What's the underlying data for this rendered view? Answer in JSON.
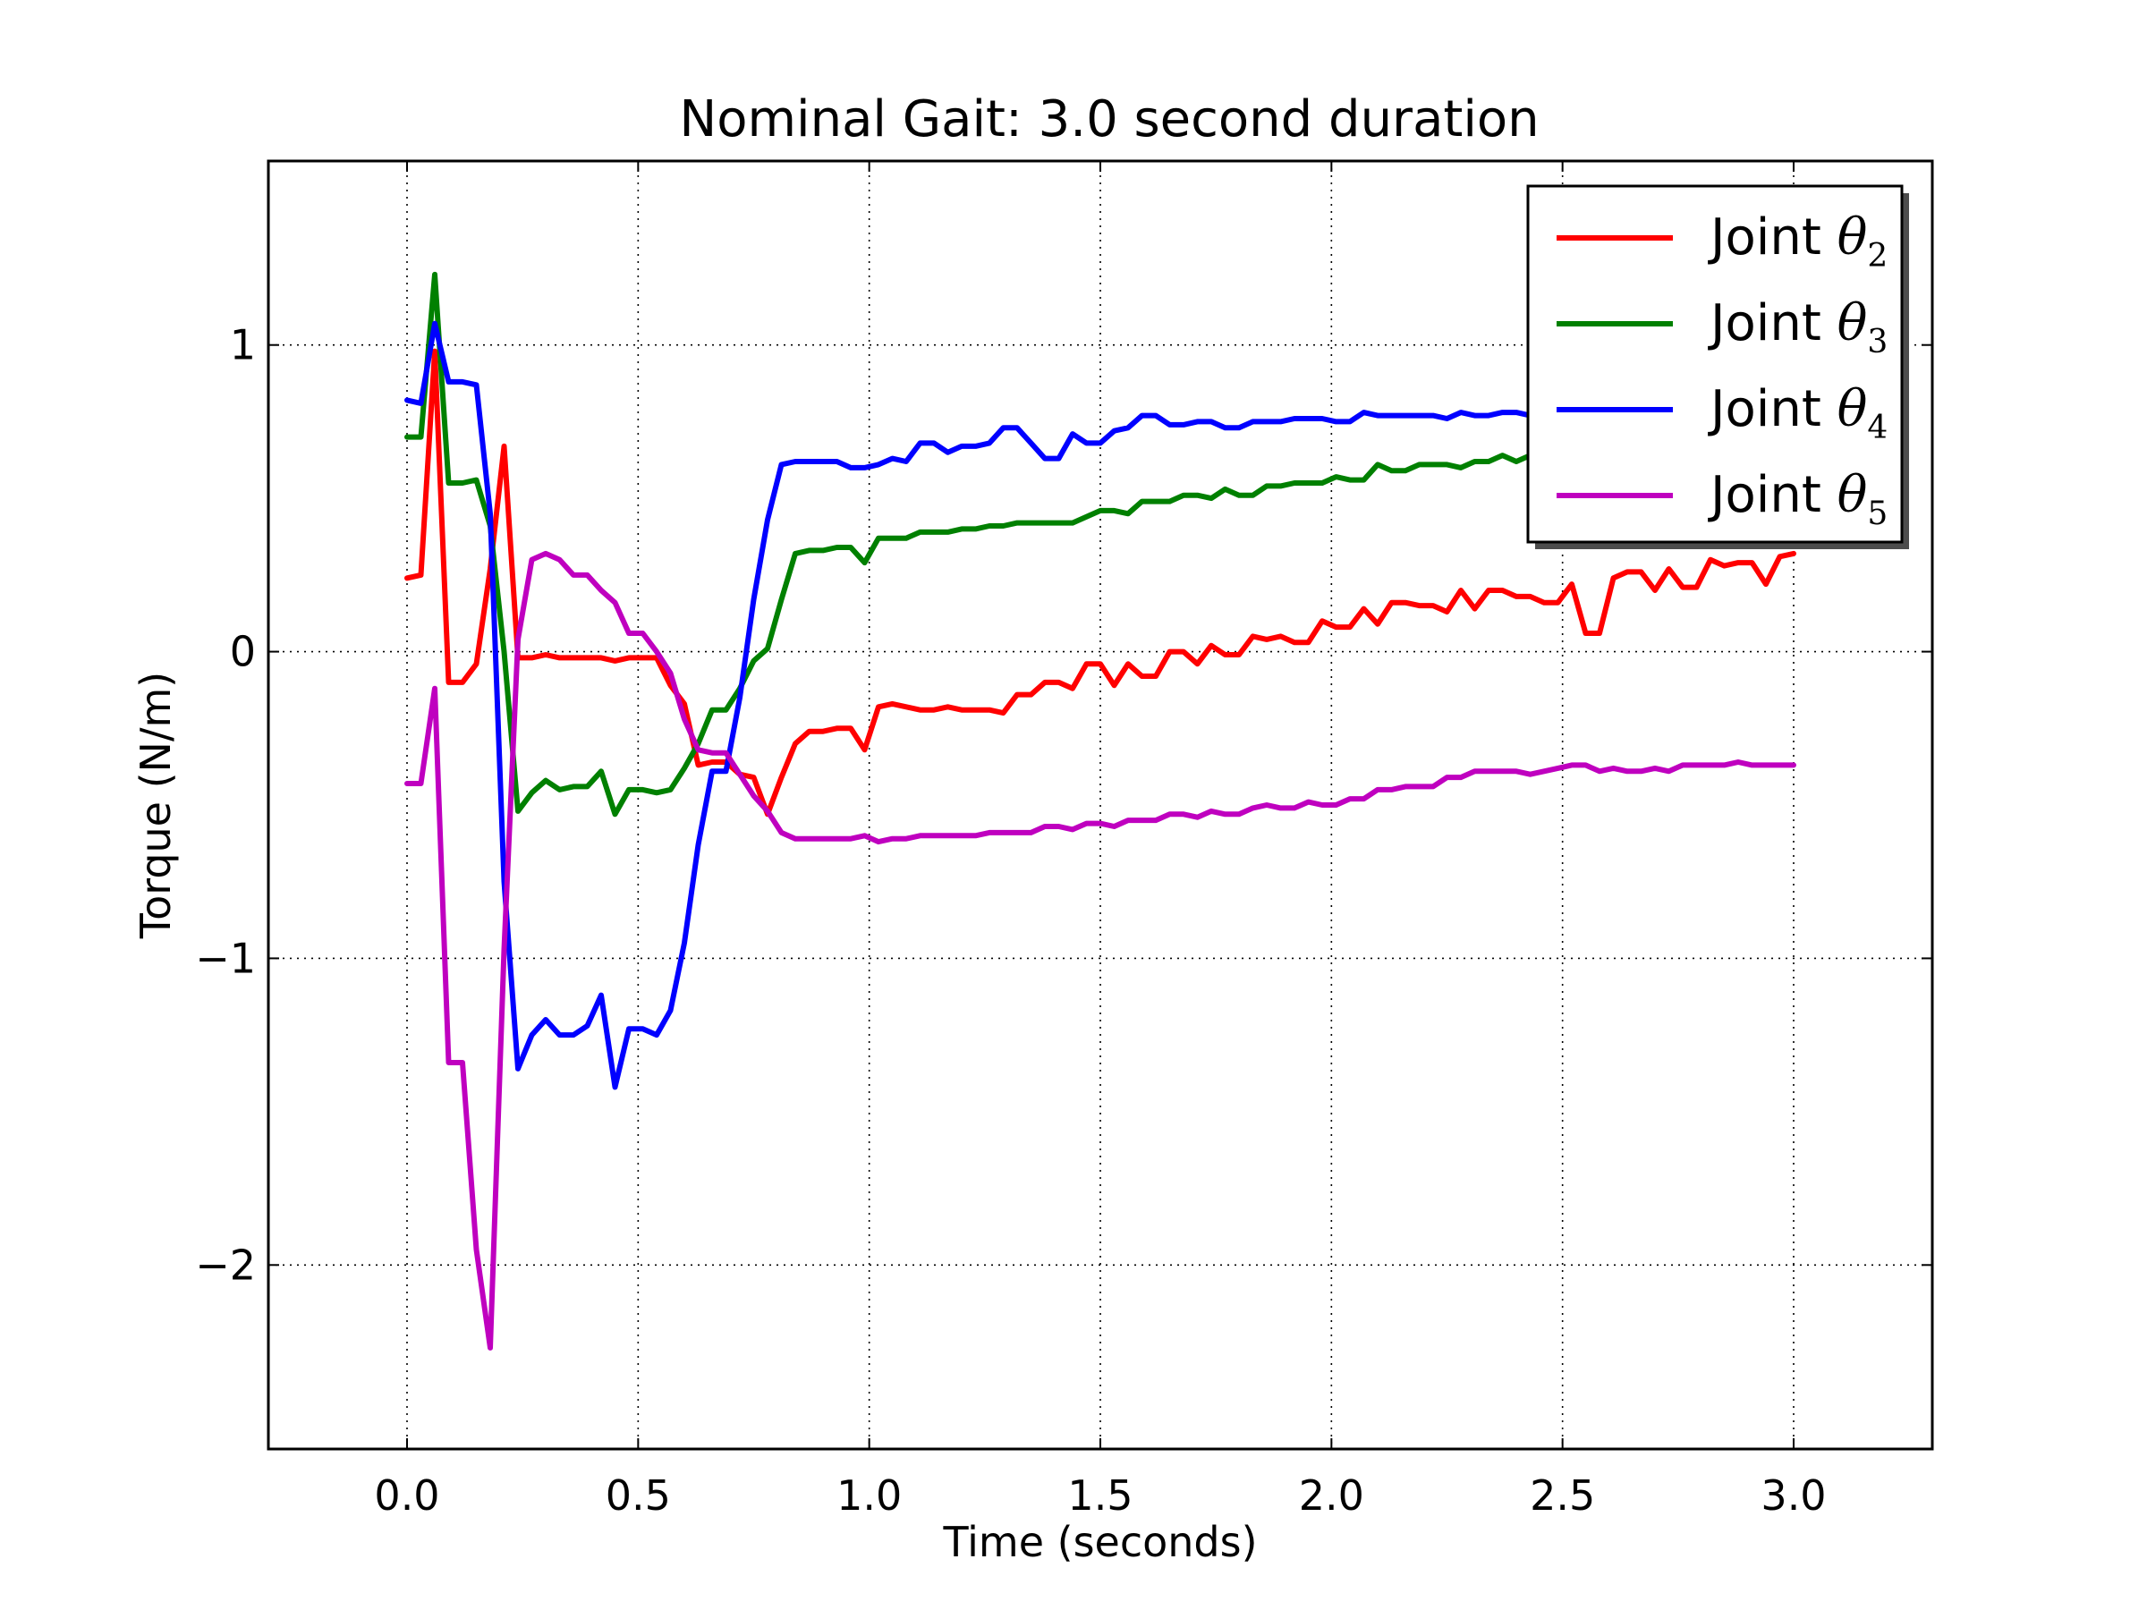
{
  "chart_data": {
    "type": "line",
    "title": "Nominal Gait: 3.0 second duration",
    "xlabel": "Time (seconds)",
    "ylabel": "Torque (N/m)",
    "xlim": [
      -0.3,
      3.3
    ],
    "ylim": [
      -2.6,
      1.6
    ],
    "xticks": [
      0.0,
      0.5,
      1.0,
      1.5,
      2.0,
      2.5,
      3.0
    ],
    "xtick_labels": [
      "0.0",
      "0.5",
      "1.0",
      "1.5",
      "2.0",
      "2.5",
      "3.0"
    ],
    "yticks": [
      -2,
      -1,
      0,
      1
    ],
    "ytick_labels": [
      "−2",
      "−1",
      "0",
      "1"
    ],
    "grid": true,
    "legend_position": "top-right",
    "series": [
      {
        "name": "Joint θ2",
        "label_main": "Joint ",
        "label_symbol": "θ",
        "label_sub": "2",
        "color": "#ff0000",
        "x": [
          0.0,
          0.03,
          0.06,
          0.09,
          0.12,
          0.15,
          0.18,
          0.21,
          0.24,
          0.27,
          0.3,
          0.33,
          0.36,
          0.39,
          0.42,
          0.45,
          0.48,
          0.51,
          0.54,
          0.57,
          0.6,
          0.63,
          0.66,
          0.69,
          0.72,
          0.75,
          0.78,
          0.81,
          0.84,
          0.87,
          0.9,
          0.93,
          0.96,
          0.99,
          1.02,
          1.05,
          1.08,
          1.11,
          1.14,
          1.17,
          1.2,
          1.23,
          1.26,
          1.29,
          1.32,
          1.35,
          1.38,
          1.41,
          1.44,
          1.47,
          1.5,
          1.53,
          1.56,
          1.59,
          1.62,
          1.65,
          1.68,
          1.71,
          1.74,
          1.77,
          1.8,
          1.83,
          1.86,
          1.89,
          1.92,
          1.95,
          1.98,
          2.01,
          2.04,
          2.07,
          2.1,
          2.13,
          2.16,
          2.19,
          2.22,
          2.25,
          2.28,
          2.31,
          2.34,
          2.37,
          2.4,
          2.43,
          2.46,
          2.49,
          2.52,
          2.55,
          2.58,
          2.61,
          2.64,
          2.67,
          2.7,
          2.73,
          2.76,
          2.79,
          2.82,
          2.85,
          2.88,
          2.91,
          2.94,
          2.97,
          3.0
        ],
        "y": [
          0.24,
          0.25,
          0.98,
          -0.1,
          -0.1,
          -0.04,
          0.27,
          0.67,
          -0.02,
          -0.02,
          -0.01,
          -0.02,
          -0.02,
          -0.02,
          -0.02,
          -0.03,
          -0.02,
          -0.02,
          -0.02,
          -0.11,
          -0.17,
          -0.37,
          -0.36,
          -0.36,
          -0.4,
          -0.41,
          -0.53,
          -0.41,
          -0.3,
          -0.26,
          -0.26,
          -0.25,
          -0.25,
          -0.32,
          -0.18,
          -0.17,
          -0.18,
          -0.19,
          -0.19,
          -0.18,
          -0.19,
          -0.19,
          -0.19,
          -0.2,
          -0.14,
          -0.14,
          -0.1,
          -0.1,
          -0.12,
          -0.04,
          -0.04,
          -0.11,
          -0.04,
          -0.08,
          -0.08,
          0.0,
          0.0,
          -0.04,
          0.02,
          -0.01,
          -0.01,
          0.05,
          0.04,
          0.05,
          0.03,
          0.03,
          0.1,
          0.08,
          0.08,
          0.14,
          0.09,
          0.16,
          0.16,
          0.15,
          0.15,
          0.13,
          0.2,
          0.14,
          0.2,
          0.2,
          0.18,
          0.18,
          0.16,
          0.16,
          0.22,
          0.06,
          0.06,
          0.24,
          0.26,
          0.26,
          0.2,
          0.27,
          0.21,
          0.21,
          0.3,
          0.28,
          0.29,
          0.29,
          0.22,
          0.31,
          0.32
        ]
      },
      {
        "name": "Joint θ3",
        "label_main": "Joint ",
        "label_symbol": "θ",
        "label_sub": "3",
        "color": "#008000",
        "x": [
          0.0,
          0.03,
          0.06,
          0.09,
          0.12,
          0.15,
          0.18,
          0.21,
          0.24,
          0.27,
          0.3,
          0.33,
          0.36,
          0.39,
          0.42,
          0.45,
          0.48,
          0.51,
          0.54,
          0.57,
          0.6,
          0.63,
          0.66,
          0.69,
          0.72,
          0.75,
          0.78,
          0.81,
          0.84,
          0.87,
          0.9,
          0.93,
          0.96,
          0.99,
          1.02,
          1.05,
          1.08,
          1.11,
          1.14,
          1.17,
          1.2,
          1.23,
          1.26,
          1.29,
          1.32,
          1.35,
          1.38,
          1.41,
          1.44,
          1.47,
          1.5,
          1.53,
          1.56,
          1.59,
          1.62,
          1.65,
          1.68,
          1.71,
          1.74,
          1.77,
          1.8,
          1.83,
          1.86,
          1.89,
          1.92,
          1.95,
          1.98,
          2.01,
          2.04,
          2.07,
          2.1,
          2.13,
          2.16,
          2.19,
          2.22,
          2.25,
          2.28,
          2.31,
          2.34,
          2.37,
          2.4,
          2.43,
          2.46,
          2.49,
          2.52,
          2.55,
          2.58,
          2.61,
          2.64,
          2.67,
          2.7,
          2.73,
          2.76,
          2.79,
          2.82,
          2.85,
          2.88,
          2.91,
          2.94,
          2.97,
          3.0
        ],
        "y": [
          0.7,
          0.7,
          1.23,
          0.55,
          0.55,
          0.56,
          0.41,
          0.0,
          -0.52,
          -0.46,
          -0.42,
          -0.45,
          -0.44,
          -0.44,
          -0.39,
          -0.53,
          -0.45,
          -0.45,
          -0.46,
          -0.45,
          -0.38,
          -0.3,
          -0.19,
          -0.19,
          -0.12,
          -0.03,
          0.01,
          0.17,
          0.32,
          0.33,
          0.33,
          0.34,
          0.34,
          0.29,
          0.37,
          0.37,
          0.37,
          0.39,
          0.39,
          0.39,
          0.4,
          0.4,
          0.41,
          0.41,
          0.42,
          0.42,
          0.42,
          0.42,
          0.42,
          0.44,
          0.46,
          0.46,
          0.45,
          0.49,
          0.49,
          0.49,
          0.51,
          0.51,
          0.5,
          0.53,
          0.51,
          0.51,
          0.54,
          0.54,
          0.55,
          0.55,
          0.55,
          0.57,
          0.56,
          0.56,
          0.61,
          0.59,
          0.59,
          0.61,
          0.61,
          0.61,
          0.6,
          0.62,
          0.62,
          0.64,
          0.62,
          0.64,
          0.64,
          0.64,
          0.64,
          0.63,
          0.63,
          0.64,
          0.64,
          0.64,
          0.64,
          0.64,
          0.64,
          0.64,
          0.64,
          0.64,
          0.64,
          0.64,
          0.64,
          0.64,
          0.64
        ]
      },
      {
        "name": "Joint θ4",
        "label_main": "Joint ",
        "label_symbol": "θ",
        "label_sub": "4",
        "color": "#0000ff",
        "x": [
          0.0,
          0.03,
          0.06,
          0.09,
          0.12,
          0.15,
          0.18,
          0.21,
          0.24,
          0.27,
          0.3,
          0.33,
          0.36,
          0.39,
          0.42,
          0.45,
          0.48,
          0.51,
          0.54,
          0.57,
          0.6,
          0.63,
          0.66,
          0.69,
          0.72,
          0.75,
          0.78,
          0.81,
          0.84,
          0.87,
          0.9,
          0.93,
          0.96,
          0.99,
          1.02,
          1.05,
          1.08,
          1.11,
          1.14,
          1.17,
          1.2,
          1.23,
          1.26,
          1.29,
          1.32,
          1.35,
          1.38,
          1.41,
          1.44,
          1.47,
          1.5,
          1.53,
          1.56,
          1.59,
          1.62,
          1.65,
          1.68,
          1.71,
          1.74,
          1.77,
          1.8,
          1.83,
          1.86,
          1.89,
          1.92,
          1.95,
          1.98,
          2.01,
          2.04,
          2.07,
          2.1,
          2.13,
          2.16,
          2.19,
          2.22,
          2.25,
          2.28,
          2.31,
          2.34,
          2.37,
          2.4,
          2.43,
          2.46,
          2.49,
          2.52,
          2.55,
          2.58,
          2.61,
          2.64,
          2.67,
          2.7,
          2.73,
          2.76,
          2.79,
          2.82,
          2.85,
          2.88,
          2.91,
          2.94,
          2.97,
          3.0
        ],
        "y": [
          0.82,
          0.81,
          1.07,
          0.88,
          0.88,
          0.87,
          0.45,
          -0.75,
          -1.36,
          -1.25,
          -1.2,
          -1.25,
          -1.25,
          -1.22,
          -1.12,
          -1.42,
          -1.23,
          -1.23,
          -1.25,
          -1.17,
          -0.95,
          -0.63,
          -0.39,
          -0.39,
          -0.15,
          0.17,
          0.43,
          0.61,
          0.62,
          0.62,
          0.62,
          0.62,
          0.6,
          0.6,
          0.61,
          0.63,
          0.62,
          0.68,
          0.68,
          0.65,
          0.67,
          0.67,
          0.68,
          0.73,
          0.73,
          0.68,
          0.63,
          0.63,
          0.71,
          0.68,
          0.68,
          0.72,
          0.73,
          0.77,
          0.77,
          0.74,
          0.74,
          0.75,
          0.75,
          0.73,
          0.73,
          0.75,
          0.75,
          0.75,
          0.76,
          0.76,
          0.76,
          0.75,
          0.75,
          0.78,
          0.77,
          0.77,
          0.77,
          0.77,
          0.77,
          0.76,
          0.78,
          0.77,
          0.77,
          0.78,
          0.78,
          0.77,
          0.78,
          0.78,
          0.78,
          0.78,
          0.78,
          0.78,
          0.78,
          0.78,
          0.78,
          0.78,
          0.78,
          0.78,
          0.78,
          0.78,
          0.78,
          0.78,
          0.78,
          0.78,
          0.78
        ]
      },
      {
        "name": "Joint θ5",
        "label_main": "Joint ",
        "label_symbol": "θ",
        "label_sub": "5",
        "color": "#bf00bf",
        "x": [
          0.0,
          0.03,
          0.06,
          0.09,
          0.12,
          0.15,
          0.18,
          0.21,
          0.24,
          0.27,
          0.3,
          0.33,
          0.36,
          0.39,
          0.42,
          0.45,
          0.48,
          0.51,
          0.54,
          0.57,
          0.6,
          0.63,
          0.66,
          0.69,
          0.72,
          0.75,
          0.78,
          0.81,
          0.84,
          0.87,
          0.9,
          0.93,
          0.96,
          0.99,
          1.02,
          1.05,
          1.08,
          1.11,
          1.14,
          1.17,
          1.2,
          1.23,
          1.26,
          1.29,
          1.32,
          1.35,
          1.38,
          1.41,
          1.44,
          1.47,
          1.5,
          1.53,
          1.56,
          1.59,
          1.62,
          1.65,
          1.68,
          1.71,
          1.74,
          1.77,
          1.8,
          1.83,
          1.86,
          1.89,
          1.92,
          1.95,
          1.98,
          2.01,
          2.04,
          2.07,
          2.1,
          2.13,
          2.16,
          2.19,
          2.22,
          2.25,
          2.28,
          2.31,
          2.34,
          2.37,
          2.4,
          2.43,
          2.46,
          2.49,
          2.52,
          2.55,
          2.58,
          2.61,
          2.64,
          2.67,
          2.7,
          2.73,
          2.76,
          2.79,
          2.82,
          2.85,
          2.88,
          2.91,
          2.94,
          2.97,
          3.0
        ],
        "y": [
          -0.43,
          -0.43,
          -0.12,
          -1.34,
          -1.34,
          -1.95,
          -2.27,
          -0.97,
          0.04,
          0.3,
          0.32,
          0.3,
          0.25,
          0.25,
          0.2,
          0.16,
          0.06,
          0.06,
          0.0,
          -0.07,
          -0.22,
          -0.32,
          -0.33,
          -0.33,
          -0.4,
          -0.47,
          -0.52,
          -0.59,
          -0.61,
          -0.61,
          -0.61,
          -0.61,
          -0.61,
          -0.6,
          -0.62,
          -0.61,
          -0.61,
          -0.6,
          -0.6,
          -0.6,
          -0.6,
          -0.6,
          -0.59,
          -0.59,
          -0.59,
          -0.59,
          -0.57,
          -0.57,
          -0.58,
          -0.56,
          -0.56,
          -0.57,
          -0.55,
          -0.55,
          -0.55,
          -0.53,
          -0.53,
          -0.54,
          -0.52,
          -0.53,
          -0.53,
          -0.51,
          -0.5,
          -0.51,
          -0.51,
          -0.49,
          -0.5,
          -0.5,
          -0.48,
          -0.48,
          -0.45,
          -0.45,
          -0.44,
          -0.44,
          -0.44,
          -0.41,
          -0.41,
          -0.39,
          -0.39,
          -0.39,
          -0.39,
          -0.4,
          -0.39,
          -0.38,
          -0.37,
          -0.37,
          -0.39,
          -0.38,
          -0.39,
          -0.39,
          -0.38,
          -0.39,
          -0.37,
          -0.37,
          -0.37,
          -0.37,
          -0.36,
          -0.37,
          -0.37,
          -0.37,
          -0.37
        ]
      }
    ]
  }
}
